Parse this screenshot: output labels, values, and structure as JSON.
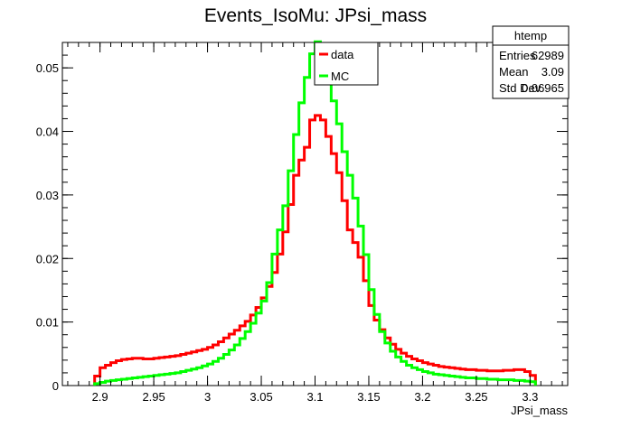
{
  "chart_data": {
    "type": "line",
    "title": "Events_IsoMu: JPsi_mass",
    "xlabel": "JPsi_mass",
    "ylabel": "",
    "xlim": [
      2.865,
      3.335
    ],
    "ylim": [
      0,
      0.054
    ],
    "xticks": [
      2.9,
      2.95,
      3.0,
      3.05,
      3.1,
      3.15,
      3.2,
      3.25,
      3.3
    ],
    "xtick_labels": [
      "2.9",
      "2.95",
      "3",
      "3.05",
      "3.1",
      "3.15",
      "3.2",
      "3.25",
      "3.3"
    ],
    "yticks": [
      0,
      0.01,
      0.02,
      0.03,
      0.04,
      0.05
    ],
    "ytick_labels": [
      "0",
      "0.01",
      "0.02",
      "0.03",
      "0.04",
      "0.05"
    ],
    "bin_edges_range": [
      2.895,
      3.305
    ],
    "bin_width": 0.005,
    "series": [
      {
        "name": "data",
        "color": "#ff0000",
        "values": [
          0.0015,
          0.0028,
          0.0032,
          0.0036,
          0.0039,
          0.0041,
          0.0042,
          0.0043,
          0.0043,
          0.0042,
          0.0042,
          0.0043,
          0.0044,
          0.0045,
          0.0046,
          0.0047,
          0.0049,
          0.0051,
          0.0053,
          0.0055,
          0.0057,
          0.006,
          0.0064,
          0.0069,
          0.0075,
          0.0081,
          0.0087,
          0.0094,
          0.0101,
          0.0111,
          0.0123,
          0.0138,
          0.0156,
          0.0178,
          0.0207,
          0.0242,
          0.0285,
          0.0331,
          0.0355,
          0.0375,
          0.0418,
          0.0425,
          0.0418,
          0.0392,
          0.0365,
          0.0335,
          0.0291,
          0.0245,
          0.0225,
          0.0202,
          0.0165,
          0.0126,
          0.0103,
          0.0088,
          0.0075,
          0.0065,
          0.0057,
          0.0051,
          0.0046,
          0.0042,
          0.0039,
          0.0036,
          0.0034,
          0.0032,
          0.003,
          0.0029,
          0.0028,
          0.0027,
          0.0026,
          0.0025,
          0.0025,
          0.0024,
          0.0024,
          0.0023,
          0.0023,
          0.0023,
          0.0024,
          0.0024,
          0.0025,
          0.0025,
          0.0022,
          0.0016
        ]
      },
      {
        "name": "MC",
        "color": "#00ff00",
        "values": [
          0.0003,
          0.0005,
          0.0007,
          0.0008,
          0.0009,
          0.001,
          0.0011,
          0.0012,
          0.0013,
          0.0014,
          0.0015,
          0.0016,
          0.0017,
          0.0018,
          0.0019,
          0.002,
          0.0022,
          0.0024,
          0.0026,
          0.0028,
          0.0031,
          0.0034,
          0.0038,
          0.0043,
          0.0049,
          0.0056,
          0.0064,
          0.0074,
          0.0085,
          0.0098,
          0.0114,
          0.0133,
          0.0162,
          0.0207,
          0.0245,
          0.0283,
          0.0338,
          0.0395,
          0.0445,
          0.0485,
          0.0522,
          0.0541,
          0.0532,
          0.0505,
          0.0448,
          0.0412,
          0.0368,
          0.0331,
          0.0295,
          0.0251,
          0.0206,
          0.0151,
          0.0112,
          0.0085,
          0.0067,
          0.0054,
          0.0045,
          0.0038,
          0.0032,
          0.0028,
          0.0025,
          0.0022,
          0.002,
          0.0018,
          0.0017,
          0.0016,
          0.0015,
          0.0014,
          0.0013,
          0.0012,
          0.0012,
          0.0011,
          0.0011,
          0.001,
          0.001,
          0.0009,
          0.0009,
          0.0009,
          0.0008,
          0.0008,
          0.0007,
          0.0006
        ]
      }
    ],
    "legend": {
      "placement": "top-center",
      "entries": [
        {
          "label": "data",
          "color": "#ff0000"
        },
        {
          "label": "MC",
          "color": "#00ff00"
        }
      ]
    },
    "stats_box": {
      "name": "htemp",
      "rows": [
        {
          "label": "Entries",
          "value": "62989"
        },
        {
          "label": "Mean",
          "value": "3.09"
        },
        {
          "label": "Std Dev",
          "value": "0.06965"
        }
      ]
    },
    "grid": false
  }
}
